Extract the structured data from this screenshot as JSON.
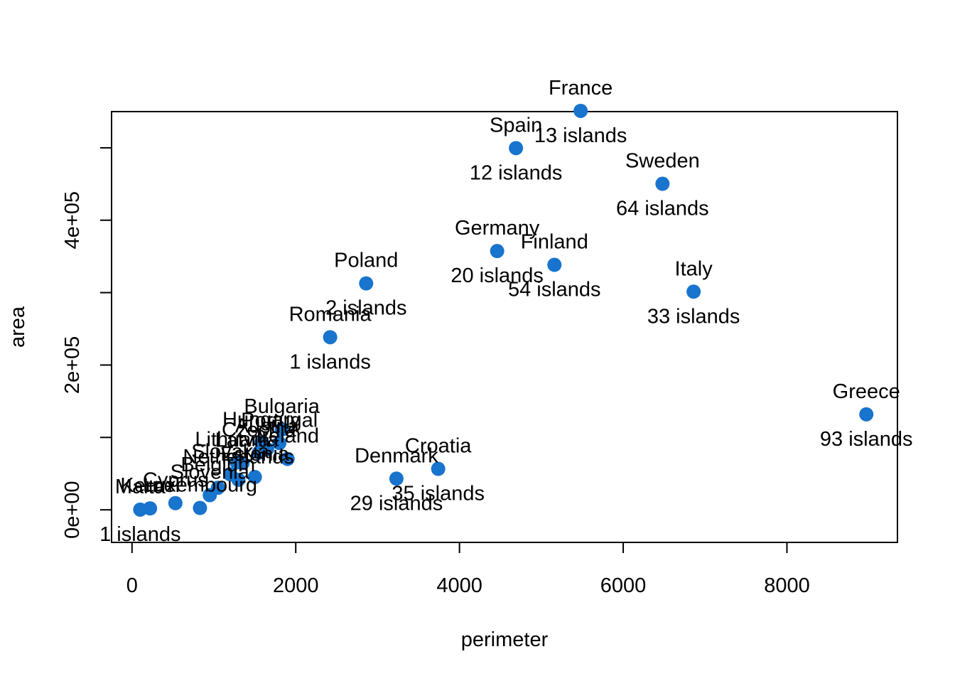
{
  "chart_data": {
    "type": "scatter",
    "title": "",
    "xlabel": "perimeter",
    "ylabel": "area",
    "xlim": [
      -250,
      9350
    ],
    "ylim": [
      -45000,
      550000
    ],
    "xticks": [
      0,
      2000,
      4000,
      6000,
      8000
    ],
    "xtick_labels": [
      "0",
      "2000",
      "4000",
      "6000",
      "8000"
    ],
    "yticks": [
      0,
      200000,
      400000
    ],
    "ytick_labels": [
      "0e+00",
      "2e+05",
      "4e+05"
    ],
    "grid": false,
    "point_color": "#1874CD",
    "points": [
      {
        "name": "Greece",
        "islands_label": "93 islands",
        "x": 8970,
        "y": 131900
      },
      {
        "name": "Italy",
        "islands_label": "33 islands",
        "x": 6860,
        "y": 301300
      },
      {
        "name": "Sweden",
        "islands_label": "64 islands",
        "x": 6480,
        "y": 450300
      },
      {
        "name": "Spain",
        "islands_label": "12 islands",
        "x": 4690,
        "y": 499600
      },
      {
        "name": "France",
        "islands_label": "13 islands",
        "x": 5480,
        "y": 551000
      },
      {
        "name": "Finland",
        "islands_label": "54 islands",
        "x": 5160,
        "y": 338400
      },
      {
        "name": "Germany",
        "islands_label": "20 islands",
        "x": 4460,
        "y": 357400
      },
      {
        "name": "Poland",
        "islands_label": "2 islands",
        "x": 2860,
        "y": 312700
      },
      {
        "name": "Romania",
        "islands_label": "1 islands",
        "x": 2420,
        "y": 238400
      },
      {
        "name": "Croatia",
        "islands_label": "35 islands",
        "x": 3740,
        "y": 56600
      },
      {
        "name": "Denmark",
        "islands_label": "29 islands",
        "x": 3230,
        "y": 43100
      },
      {
        "name": "Bulgaria",
        "islands_label": "",
        "x": 1830,
        "y": 111000
      },
      {
        "name": "Hungary",
        "islands_label": "",
        "x": 1580,
        "y": 93000
      },
      {
        "name": "Portugal",
        "islands_label": "",
        "x": 1800,
        "y": 92200
      },
      {
        "name": "Austria",
        "islands_label": "",
        "x": 1650,
        "y": 83900
      },
      {
        "name": "Czechia",
        "islands_label": "",
        "x": 1550,
        "y": 78900
      },
      {
        "name": "Ireland",
        "islands_label": "",
        "x": 1900,
        "y": 70300
      },
      {
        "name": "Lithuania",
        "islands_label": "",
        "x": 1280,
        "y": 65300
      },
      {
        "name": "Latvia",
        "islands_label": "",
        "x": 1350,
        "y": 64600
      },
      {
        "name": "Slovakia",
        "islands_label": "",
        "x": 1200,
        "y": 49000
      },
      {
        "name": "Estonia",
        "islands_label": "",
        "x": 1500,
        "y": 45300
      },
      {
        "name": "Netherlands",
        "islands_label": "",
        "x": 1300,
        "y": 41500
      },
      {
        "name": "Belgium",
        "islands_label": "",
        "x": 1050,
        "y": 30500
      },
      {
        "name": "Slovenia",
        "islands_label": "",
        "x": 950,
        "y": 20300
      },
      {
        "name": "Cyprus",
        "islands_label": "",
        "x": 530,
        "y": 9250
      },
      {
        "name": "Luxembourg",
        "islands_label": "",
        "x": 830,
        "y": 2600
      },
      {
        "name": "Malta",
        "islands_label": "1 islands",
        "x": 100,
        "y": 316
      },
      {
        "name": "Kernel",
        "islands_label": "",
        "x": 220,
        "y": 2000
      }
    ]
  }
}
